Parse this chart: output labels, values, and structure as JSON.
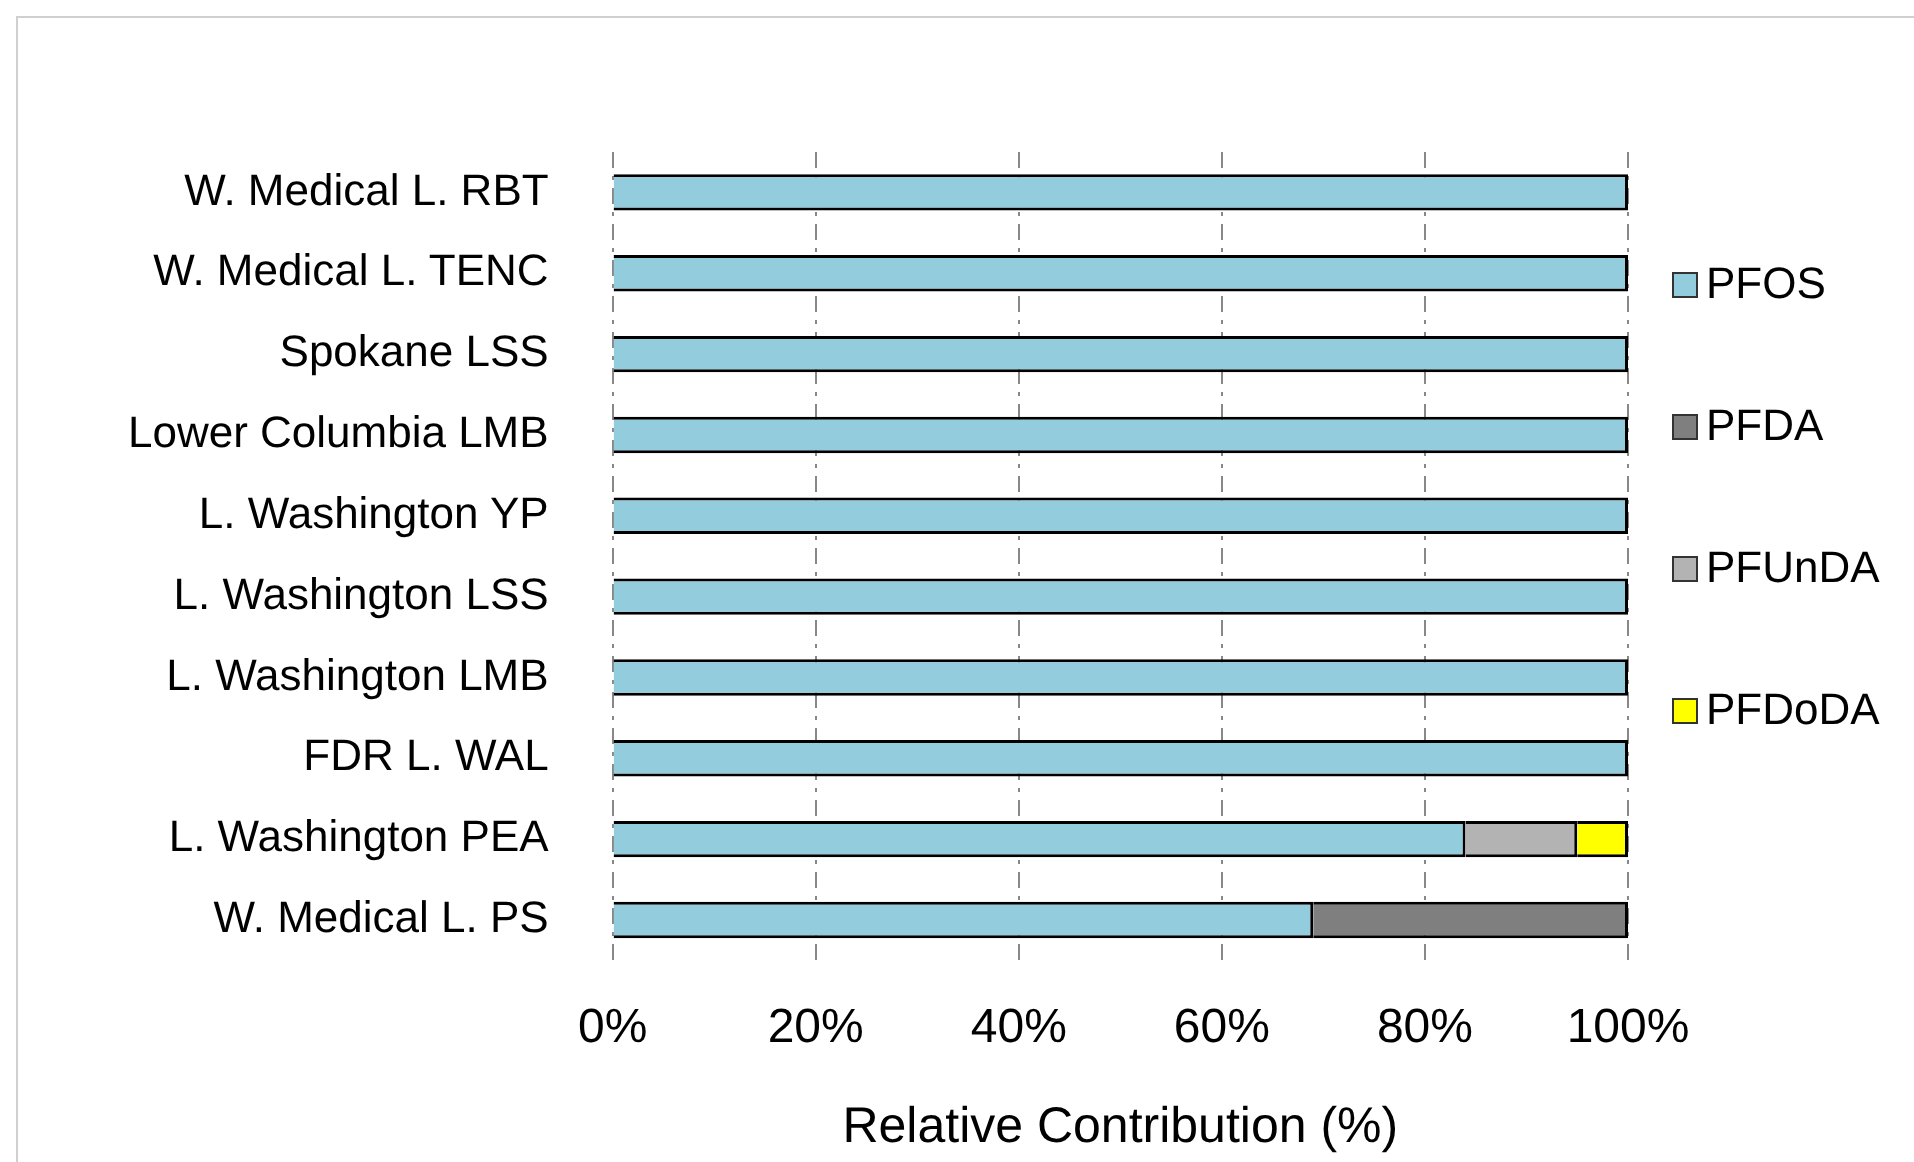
{
  "chart_data": {
    "type": "bar",
    "orientation": "horizontal",
    "stacked": true,
    "categories": [
      "W. Medical L. RBT",
      "W. Medical L. TENC",
      "Spokane LSS",
      "Lower Columbia LMB",
      "L. Washington YP",
      "L. Washington LSS",
      "L. Washington LMB",
      "FDR L. WAL",
      "L. Washington PEA",
      "W. Medical L. PS"
    ],
    "series": [
      {
        "name": "PFOS",
        "color": "#93cddd",
        "values": [
          100,
          100,
          100,
          100,
          100,
          100,
          100,
          100,
          84,
          69
        ]
      },
      {
        "name": "PFDA",
        "color": "#7f7f7f",
        "values": [
          0,
          0,
          0,
          0,
          0,
          0,
          0,
          0,
          0,
          31
        ]
      },
      {
        "name": "PFUnDA",
        "color": "#b3b3b3",
        "values": [
          0,
          0,
          0,
          0,
          0,
          0,
          0,
          0,
          11,
          0
        ]
      },
      {
        "name": "PFDoDA",
        "color": "#ffff00",
        "values": [
          0,
          0,
          0,
          0,
          0,
          0,
          0,
          0,
          5,
          0
        ]
      }
    ],
    "xlim": [
      0,
      100
    ],
    "xticks": [
      {
        "value": 0,
        "label": "0%"
      },
      {
        "value": 20,
        "label": "20%"
      },
      {
        "value": 40,
        "label": "40%"
      },
      {
        "value": 60,
        "label": "60%"
      },
      {
        "value": 80,
        "label": "80%"
      },
      {
        "value": 100,
        "label": "100%"
      }
    ],
    "xlabel": "Relative Contribution (%)",
    "grid": "x",
    "legend": "right"
  }
}
